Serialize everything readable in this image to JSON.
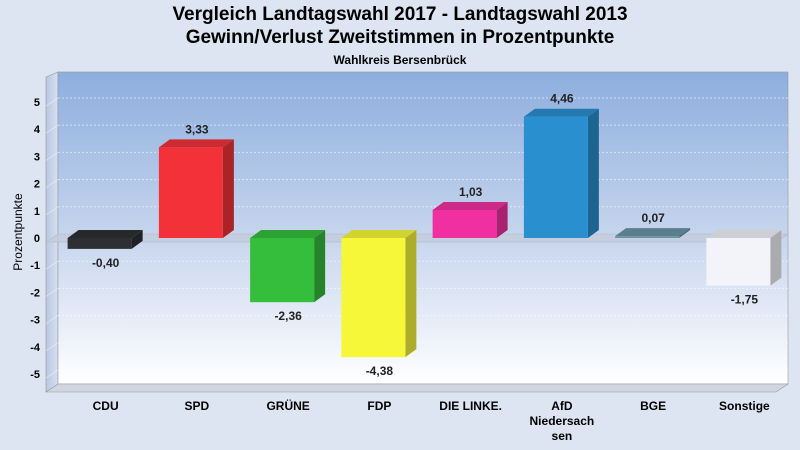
{
  "header": {
    "title": "Vergleich Landtagswahl 2017 - Landtagswahl 2013",
    "subtitle": "Gewinn/Verlust Zweitstimmen in Prozentpunkte",
    "district": "Wahlkreis Bersenbrück"
  },
  "chart_data": {
    "type": "bar",
    "title": "Vergleich Landtagswahl 2017 - Landtagswahl 2013",
    "subtitle": "Gewinn/Verlust Zweitstimmen in Prozentpunkte",
    "xlabel": "",
    "ylabel": "Prozentpunkte",
    "ylim": [
      -5.5,
      5.5
    ],
    "yticks": [
      5,
      4,
      3,
      2,
      1,
      0,
      -1,
      -2,
      -3,
      -4,
      -5
    ],
    "grid": true,
    "categories": [
      [
        "CDU"
      ],
      [
        "SPD"
      ],
      [
        "GRÜNE"
      ],
      [
        "FDP"
      ],
      [
        "DIE LINKE."
      ],
      [
        "AfD",
        "Niedersach",
        "sen"
      ],
      [
        "BGE"
      ],
      [
        "Sonstige"
      ]
    ],
    "values": [
      -0.4,
      3.33,
      -2.36,
      -4.38,
      1.03,
      4.46,
      0.07,
      -1.75
    ],
    "data_labels": [
      "-0,40",
      "3,33",
      "-2,36",
      "-4,38",
      "1,03",
      "4,46",
      "0,07",
      "-1,75"
    ],
    "colors": [
      "#2d2f33",
      "#f23238",
      "#35bd3c",
      "#f7f73a",
      "#f030a0",
      "#2a8fcf",
      "#6a94a6",
      "#f2f4fa"
    ]
  }
}
